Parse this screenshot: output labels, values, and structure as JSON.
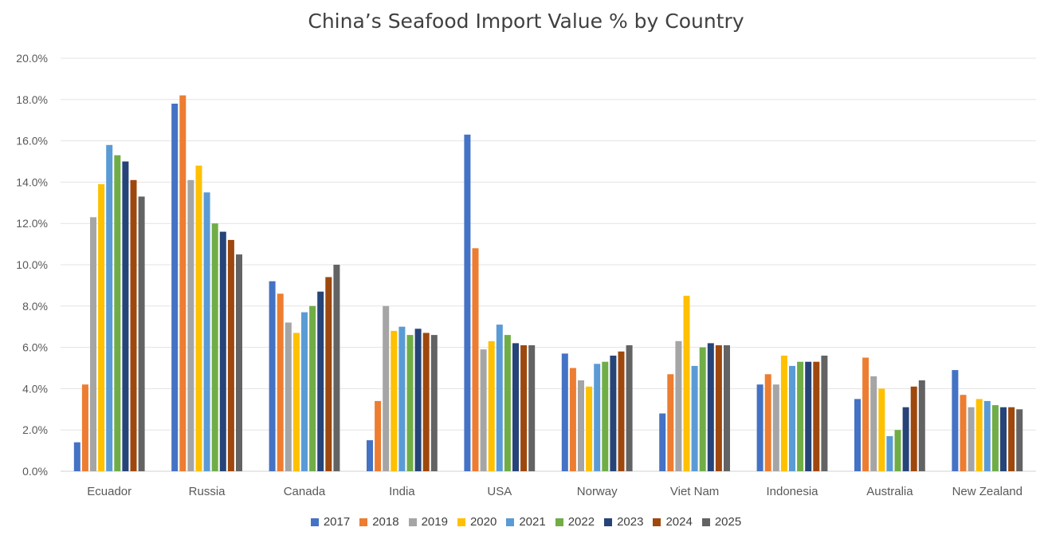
{
  "chart_data": {
    "type": "bar",
    "title": "China’s Seafood Import Value % by Country",
    "xlabel": "",
    "ylabel": "",
    "ylim": [
      0,
      20
    ],
    "yticks": [
      "0.0%",
      "2.0%",
      "4.0%",
      "6.0%",
      "8.0%",
      "10.0%",
      "12.0%",
      "14.0%",
      "16.0%",
      "18.0%",
      "20.0%"
    ],
    "grid": true,
    "legend_position": "bottom",
    "categories": [
      "Ecuador",
      "Russia",
      "Canada",
      "India",
      "USA",
      "Norway",
      "Viet Nam",
      "Indonesia",
      "Australia",
      "New Zealand"
    ],
    "series": [
      {
        "name": "2017",
        "color": "#4472c4",
        "values": [
          1.4,
          17.8,
          9.2,
          1.5,
          16.3,
          5.7,
          2.8,
          4.2,
          3.5,
          4.9
        ]
      },
      {
        "name": "2018",
        "color": "#ed7d31",
        "values": [
          4.2,
          18.2,
          8.6,
          3.4,
          10.8,
          5.0,
          4.7,
          4.7,
          5.5,
          3.7
        ]
      },
      {
        "name": "2019",
        "color": "#a5a5a5",
        "values": [
          12.3,
          14.1,
          7.2,
          8.0,
          5.9,
          4.4,
          6.3,
          4.2,
          4.6,
          3.1
        ]
      },
      {
        "name": "2020",
        "color": "#ffc000",
        "values": [
          13.9,
          14.8,
          6.7,
          6.8,
          6.3,
          4.1,
          8.5,
          5.6,
          4.0,
          3.5
        ]
      },
      {
        "name": "2021",
        "color": "#5b9bd5",
        "values": [
          15.8,
          13.5,
          7.7,
          7.0,
          7.1,
          5.2,
          5.1,
          5.1,
          1.7,
          3.4
        ]
      },
      {
        "name": "2022",
        "color": "#70ad47",
        "values": [
          15.3,
          12.0,
          8.0,
          6.6,
          6.6,
          5.3,
          6.0,
          5.3,
          2.0,
          3.2
        ]
      },
      {
        "name": "2023",
        "color": "#264478",
        "values": [
          15.0,
          11.6,
          8.7,
          6.9,
          6.2,
          5.6,
          6.2,
          5.3,
          3.1,
          3.1
        ]
      },
      {
        "name": "2024",
        "color": "#9e480e",
        "values": [
          14.1,
          11.2,
          9.4,
          6.7,
          6.1,
          5.8,
          6.1,
          5.3,
          4.1,
          3.1
        ]
      },
      {
        "name": "2025",
        "color": "#636363",
        "values": [
          13.3,
          10.5,
          10.0,
          6.6,
          6.1,
          6.1,
          6.1,
          5.6,
          4.4,
          3.0
        ]
      }
    ]
  }
}
